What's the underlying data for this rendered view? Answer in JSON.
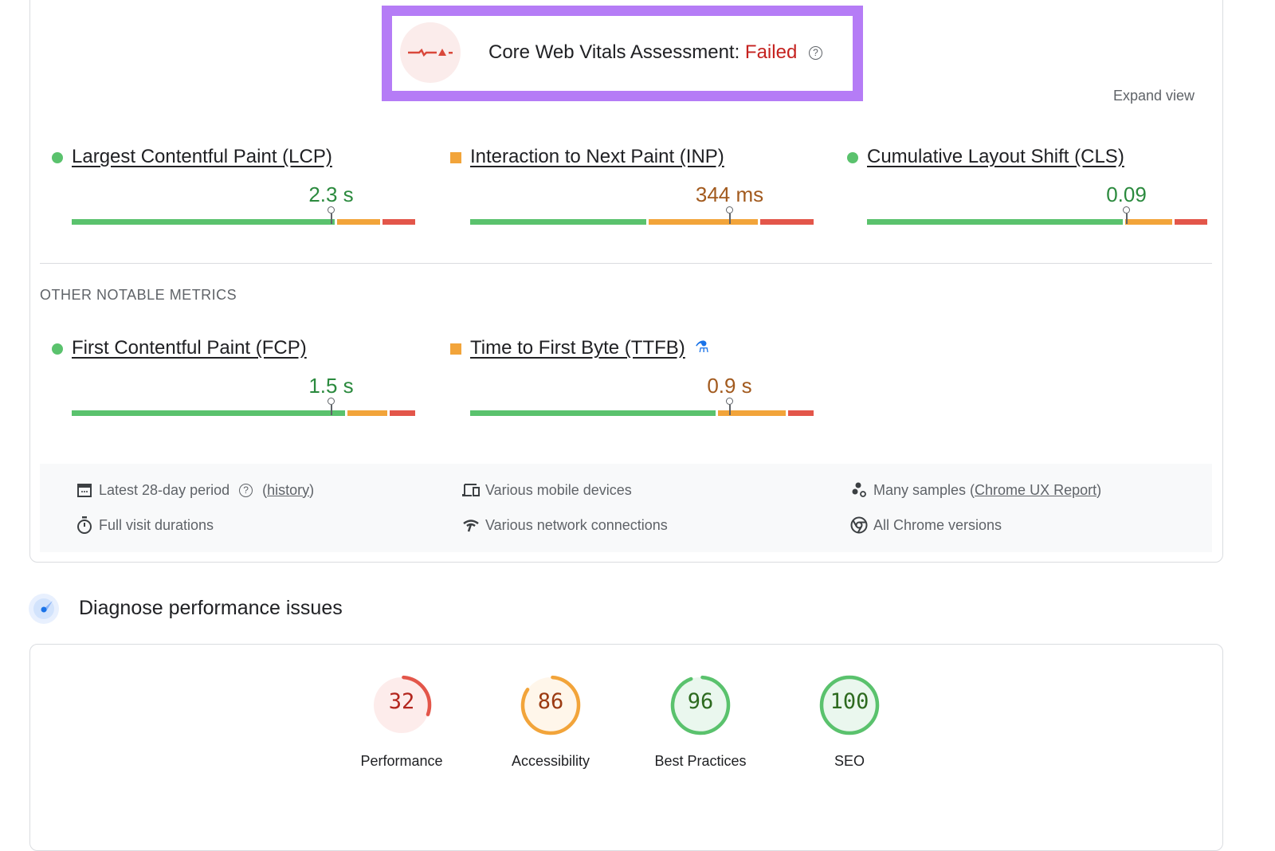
{
  "assessment": {
    "title": "Core Web Vitals Assessment:",
    "status": "Failed",
    "help_icon": "help-circle-icon",
    "status_color": "#c5221f"
  },
  "expand_view": "Expand view",
  "colors": {
    "good": "#5ac26d",
    "average": "#f2a43a",
    "poor": "#e3564a",
    "frame": "#b57cf6"
  },
  "core_metrics": [
    {
      "label": "Largest Contentful Paint (LCP)",
      "value": "2.3 s",
      "rating": "good",
      "distribution": [
        76,
        13,
        10
      ],
      "p75_position": 75
    },
    {
      "label": "Interaction to Next Paint (INP)",
      "value": "344 ms",
      "rating": "avg",
      "distribution": [
        51,
        32,
        16
      ],
      "p75_position": 75
    },
    {
      "label": "Cumulative Layout Shift (CLS)",
      "value": "0.09",
      "rating": "good",
      "distribution": [
        74,
        14,
        10
      ],
      "p75_position": 75
    }
  ],
  "other_heading": "OTHER NOTABLE METRICS",
  "other_metrics": [
    {
      "label": "First Contentful Paint (FCP)",
      "value": "1.5 s",
      "rating": "good",
      "distribution": [
        79,
        12,
        8
      ],
      "p75_position": 75
    },
    {
      "label": "Time to First Byte (TTFB)",
      "value": "0.9 s",
      "rating": "avg",
      "distribution": [
        71,
        20,
        8
      ],
      "p75_position": 75,
      "experimental_icon": "flask-icon"
    }
  ],
  "info": {
    "period": "Latest 28-day period",
    "history_open": "(",
    "history": "history",
    "history_close": ")",
    "durations": "Full visit durations",
    "devices": "Various mobile devices",
    "network": "Various network connections",
    "samples_prefix": "Many samples (",
    "samples_link": "Chrome UX Report",
    "samples_suffix": ")",
    "chrome": "All Chrome versions"
  },
  "diagnose_title": "Diagnose performance issues",
  "scores": [
    {
      "label": "Performance",
      "score": 32,
      "color": "#e3564a",
      "bg": "#fdeceb",
      "text": "#b3261e"
    },
    {
      "label": "Accessibility",
      "score": 86,
      "color": "#f2a43a",
      "bg": "#fff6ea",
      "text": "#9c3b12"
    },
    {
      "label": "Best Practices",
      "score": 96,
      "color": "#5ac26d",
      "bg": "#eaf7ee",
      "text": "#2d6a1f"
    },
    {
      "label": "SEO",
      "score": 100,
      "color": "#5ac26d",
      "bg": "#eaf7ee",
      "text": "#2d6a1f"
    }
  ]
}
